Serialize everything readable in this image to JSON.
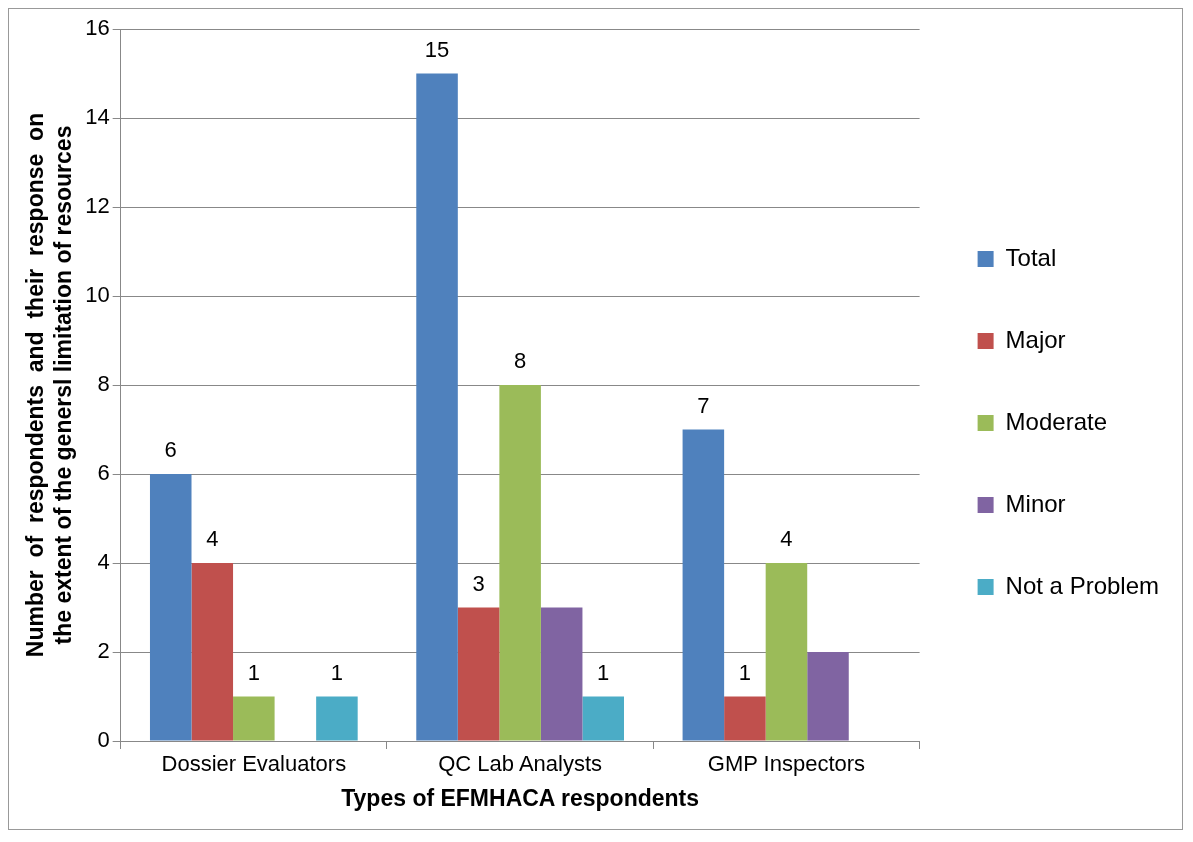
{
  "chart_data": {
    "type": "bar",
    "xlabel": "Types of EFMHACA respondents",
    "ylabel": "Number  of  respondents  and  their  response  on the extent of the genersl limitation of resources",
    "categories": [
      "Dossier Evaluators",
      "QC Lab Analysts",
      "GMP Inspectors"
    ],
    "series": [
      {
        "name": "Total",
        "color": "#4f81bd",
        "values": [
          6,
          15,
          7
        ],
        "value_labels": [
          "6",
          "15",
          "7"
        ]
      },
      {
        "name": "Major",
        "color": "#c0504d",
        "values": [
          4,
          3,
          1
        ],
        "value_labels": [
          "4",
          "3",
          "1"
        ]
      },
      {
        "name": "Moderate",
        "color": "#9bbb59",
        "values": [
          1,
          8,
          4
        ],
        "value_labels": [
          "1",
          "8",
          "4"
        ]
      },
      {
        "name": "Minor",
        "color": "#8064a2",
        "values": [
          null,
          3,
          2
        ],
        "value_labels": [
          null,
          null,
          null
        ]
      },
      {
        "name": "Not a Problem",
        "color": "#4bacc6",
        "values": [
          1,
          1,
          null
        ],
        "value_labels": [
          "1",
          "1",
          null
        ]
      }
    ],
    "ylim": [
      0,
      16
    ],
    "yticks": [
      0,
      2,
      4,
      6,
      8,
      10,
      12,
      14,
      16
    ],
    "grid": "y",
    "legend": "right"
  }
}
